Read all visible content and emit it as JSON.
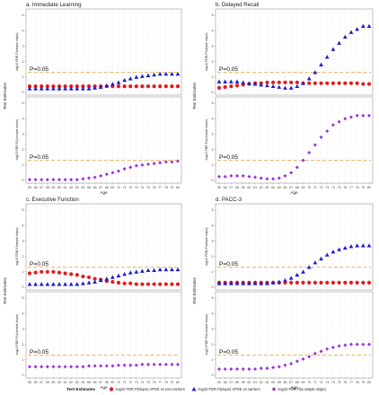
{
  "chart_data": {
    "type": "scatter",
    "x": [
      55,
      56,
      57,
      58,
      59,
      60,
      61,
      62,
      63,
      64,
      65,
      66,
      67,
      68,
      69,
      70,
      71,
      72,
      73,
      74,
      75,
      76,
      77,
      78,
      79,
      80
    ],
    "x_tick_labels": [
      "55",
      "56",
      "57",
      "58",
      "59",
      "60",
      "61",
      "62",
      "63",
      "64",
      "65",
      "66",
      "67",
      "68",
      "69",
      "70",
      "71",
      "72",
      "73",
      "74",
      "75",
      "76",
      "77",
      "78",
      "79",
      "80"
    ],
    "y_tick_labels": [
      "0",
      "1",
      "2",
      "3",
      "4",
      "5"
    ],
    "ylim": [
      0,
      5
    ],
    "xlabel": "Age",
    "shared_ylabel": "Test Estimates",
    "top_ylabel": "-log10 FDR-P(simple slope)",
    "bottom_ylabel": "-log10 FDR P(Δ simple slope)",
    "reference_line": {
      "y": 1.3,
      "label": "P=0.05",
      "color": "#E8A33D"
    },
    "legend": {
      "title": "Test Estimates",
      "position": "bottom",
      "entries": [
        {
          "label": "-log10 FDR P(slope) APOE ε4 non-carriers",
          "color": "#E41A1C",
          "shape": "circle"
        },
        {
          "label": "-log10 FDR P(slope) APOE ε4 carriers",
          "color": "#1F1FCC",
          "shape": "triangle"
        },
        {
          "label": "-log10 FDR P(Δ simple slope)",
          "color": "#9B30D9",
          "shape": "diamond"
        }
      ]
    },
    "panels": [
      {
        "title": "a. Immediate Learning",
        "top": {
          "non_carriers": [
            0.4,
            0.4,
            0.4,
            0.4,
            0.4,
            0.4,
            0.4,
            0.4,
            0.4,
            0.4,
            0.4,
            0.4,
            0.4,
            0.4,
            0.4,
            0.4,
            0.4,
            0.4,
            0.4,
            0.4,
            0.4,
            0.4,
            0.4,
            0.4,
            0.4,
            0.4
          ],
          "carriers": [
            0.25,
            0.25,
            0.25,
            0.25,
            0.25,
            0.25,
            0.25,
            0.25,
            0.25,
            0.25,
            0.25,
            0.3,
            0.35,
            0.45,
            0.55,
            0.65,
            0.8,
            0.9,
            1.0,
            1.05,
            1.1,
            1.15,
            1.2,
            1.2,
            1.2,
            1.2
          ]
        },
        "bottom": {
          "delta": [
            0.05,
            0.05,
            0.05,
            0.05,
            0.05,
            0.05,
            0.05,
            0.05,
            0.05,
            0.1,
            0.15,
            0.2,
            0.3,
            0.4,
            0.5,
            0.6,
            0.75,
            0.85,
            0.95,
            1.0,
            1.05,
            1.1,
            1.15,
            1.2,
            1.2,
            1.25
          ]
        }
      },
      {
        "title": "b. Delayed Recall",
        "top": {
          "non_carriers": [
            0.3,
            0.35,
            0.4,
            0.45,
            0.5,
            0.55,
            0.6,
            0.6,
            0.65,
            0.65,
            0.65,
            0.65,
            0.65,
            0.65,
            0.6,
            0.6,
            0.6,
            0.6,
            0.6,
            0.6,
            0.6,
            0.6,
            0.6,
            0.6,
            0.55,
            0.55
          ],
          "carriers": [
            0.7,
            0.7,
            0.7,
            0.7,
            0.65,
            0.6,
            0.55,
            0.5,
            0.45,
            0.4,
            0.35,
            0.3,
            0.3,
            0.4,
            0.6,
            0.9,
            1.3,
            1.8,
            2.3,
            2.8,
            3.2,
            3.6,
            3.9,
            4.1,
            4.3,
            4.3
          ]
        },
        "bottom": {
          "delta": [
            0.25,
            0.25,
            0.3,
            0.3,
            0.3,
            0.25,
            0.2,
            0.15,
            0.1,
            0.1,
            0.15,
            0.3,
            0.5,
            0.85,
            1.3,
            1.8,
            2.3,
            2.8,
            3.2,
            3.6,
            3.8,
            4.0,
            4.1,
            4.2,
            4.2,
            4.2
          ]
        }
      },
      {
        "title": "c. Executive Function",
        "top": {
          "non_carriers": [
            0.9,
            0.95,
            1.0,
            1.0,
            1.0,
            0.95,
            0.9,
            0.85,
            0.8,
            0.7,
            0.65,
            0.55,
            0.5,
            0.4,
            0.35,
            0.3,
            0.25,
            0.25,
            0.2,
            0.2,
            0.2,
            0.2,
            0.2,
            0.2,
            0.2,
            0.2
          ],
          "carriers": [
            0.2,
            0.2,
            0.2,
            0.2,
            0.2,
            0.2,
            0.2,
            0.2,
            0.2,
            0.25,
            0.3,
            0.35,
            0.45,
            0.55,
            0.65,
            0.75,
            0.85,
            0.95,
            1.0,
            1.05,
            1.1,
            1.1,
            1.15,
            1.15,
            1.15,
            1.15
          ]
        },
        "bottom": {
          "delta": [
            0.55,
            0.55,
            0.55,
            0.55,
            0.55,
            0.55,
            0.55,
            0.55,
            0.55,
            0.55,
            0.6,
            0.6,
            0.6,
            0.6,
            0.6,
            0.65,
            0.65,
            0.65,
            0.65,
            0.7,
            0.7,
            0.7,
            0.7,
            0.7,
            0.7,
            0.7
          ]
        }
      },
      {
        "title": "d. PACC-3",
        "top": {
          "non_carriers": [
            0.3,
            0.3,
            0.3,
            0.3,
            0.3,
            0.3,
            0.3,
            0.3,
            0.3,
            0.3,
            0.3,
            0.3,
            0.3,
            0.3,
            0.3,
            0.3,
            0.3,
            0.3,
            0.3,
            0.3,
            0.3,
            0.3,
            0.3,
            0.3,
            0.3,
            0.3
          ],
          "carriers": [
            0.25,
            0.25,
            0.25,
            0.25,
            0.25,
            0.25,
            0.25,
            0.25,
            0.25,
            0.3,
            0.35,
            0.45,
            0.6,
            0.8,
            1.0,
            1.3,
            1.6,
            1.85,
            2.1,
            2.3,
            2.45,
            2.55,
            2.65,
            2.7,
            2.7,
            2.7
          ]
        },
        "bottom": {
          "delta": [
            0.4,
            0.4,
            0.4,
            0.4,
            0.4,
            0.4,
            0.4,
            0.45,
            0.45,
            0.5,
            0.55,
            0.65,
            0.75,
            0.9,
            1.05,
            1.2,
            1.4,
            1.55,
            1.7,
            1.8,
            1.9,
            1.95,
            2.0,
            2.0,
            2.0,
            2.0
          ]
        }
      }
    ]
  }
}
